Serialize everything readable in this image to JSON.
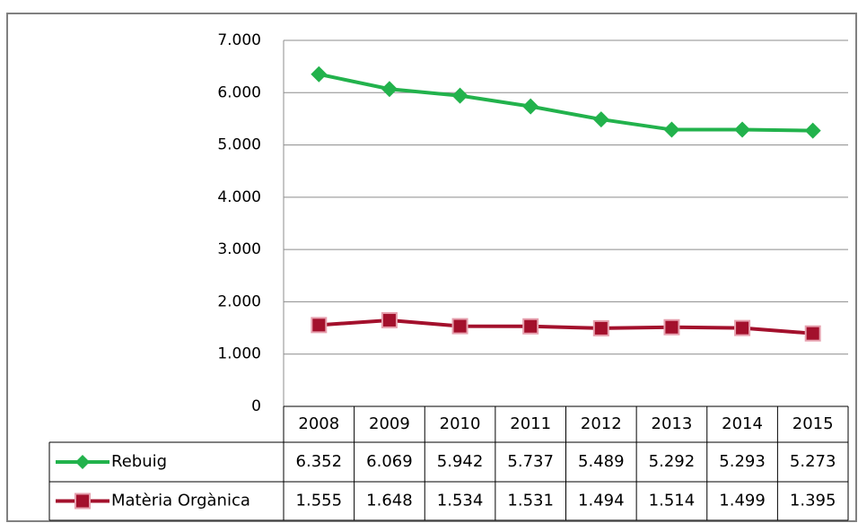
{
  "chart_data": {
    "type": "line",
    "categories": [
      "2008",
      "2009",
      "2010",
      "2011",
      "2012",
      "2013",
      "2014",
      "2015"
    ],
    "series": [
      {
        "name": "Rebuig",
        "color": "#22b24c",
        "marker": "diamond",
        "values": [
          6352,
          6069,
          5942,
          5737,
          5489,
          5292,
          5293,
          5273
        ],
        "value_labels": [
          "6.352",
          "6.069",
          "5.942",
          "5.737",
          "5.489",
          "5.292",
          "5.293",
          "5.273"
        ]
      },
      {
        "name": "Matèria Orgànica",
        "color": "#a3102c",
        "marker": "square",
        "values": [
          1555,
          1648,
          1534,
          1531,
          1494,
          1514,
          1499,
          1395
        ],
        "value_labels": [
          "1.555",
          "1.648",
          "1.534",
          "1.531",
          "1.494",
          "1.514",
          "1.499",
          "1.395"
        ]
      }
    ],
    "ylim": [
      0,
      7000
    ],
    "yticks": [
      0,
      {
        "value": 1000,
        "label": "1.000"
      },
      {
        "value": 2000,
        "label": "2.000"
      },
      {
        "value": 3000,
        "label": "3.000"
      },
      {
        "value": 4000,
        "label": "4.000"
      },
      {
        "value": 5000,
        "label": "5.000"
      },
      {
        "value": 6000,
        "label": "6.000"
      },
      {
        "value": 7000,
        "label": "7.000"
      }
    ],
    "grid": true,
    "legend": "table"
  }
}
